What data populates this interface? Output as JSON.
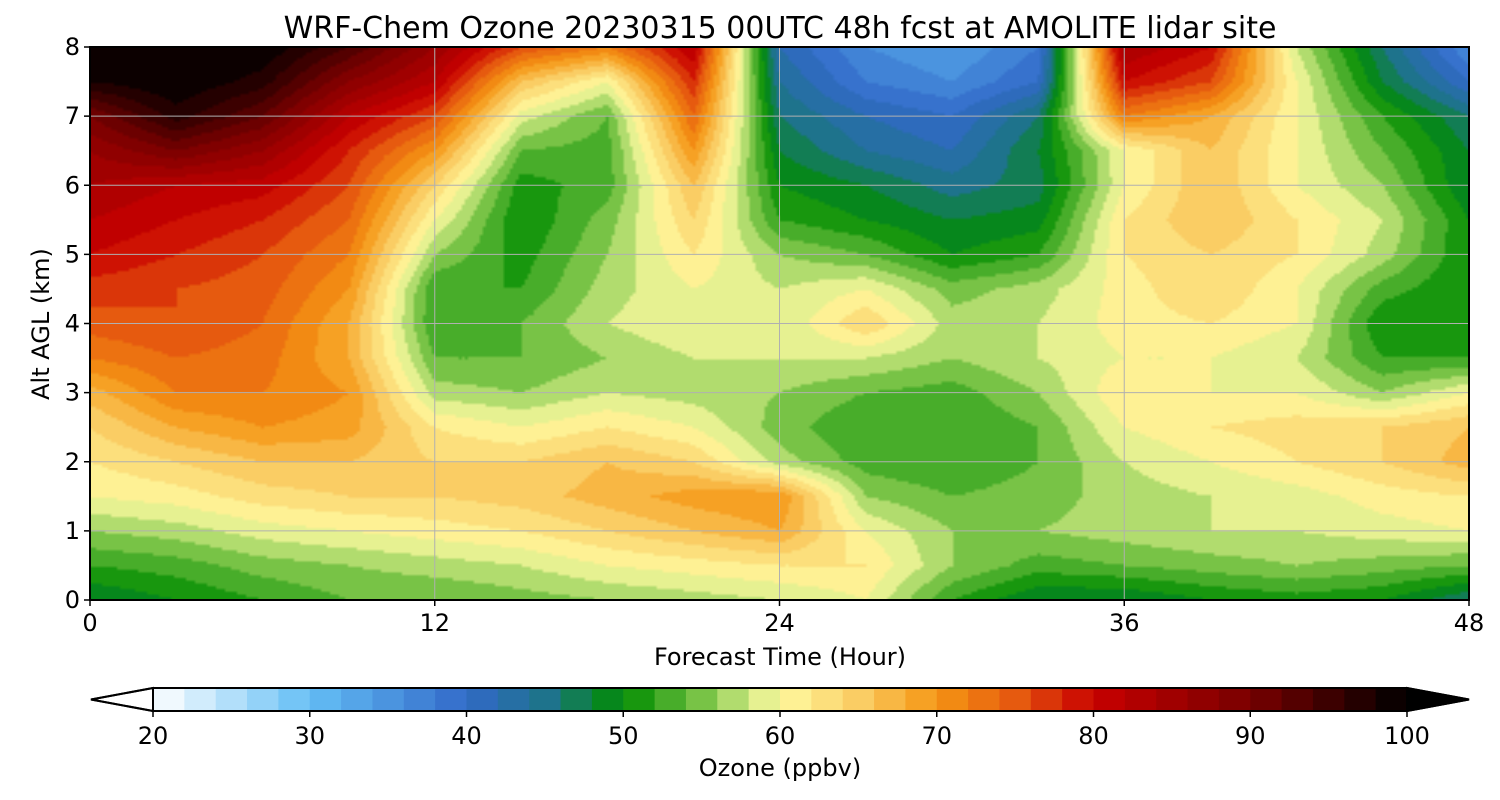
{
  "chart_data": {
    "type": "heatmap",
    "title": "WRF-Chem Ozone  20230315 00UTC 48h fcst at AMOLITE lidar site",
    "xlabel": "Forecast Time (Hour)",
    "ylabel": "Alt AGL (km)",
    "xlim": [
      0,
      48
    ],
    "ylim": [
      0,
      8
    ],
    "xticks": [
      0,
      12,
      24,
      36,
      48
    ],
    "yticks": [
      0,
      1,
      2,
      3,
      4,
      5,
      6,
      7,
      8
    ],
    "grid": true,
    "colorbar": {
      "label": "Ozone  (ppbv)",
      "min": 20,
      "max": 100,
      "step": 2,
      "extend": "both",
      "ticks": [
        20,
        30,
        40,
        50,
        60,
        70,
        80,
        90,
        100
      ]
    },
    "hours": [
      0,
      3,
      6,
      9,
      12,
      15,
      18,
      21,
      24,
      27,
      30,
      33,
      36,
      39,
      42,
      45,
      48
    ],
    "altitudes_km": [
      0,
      0.5,
      1,
      1.5,
      2,
      2.5,
      3,
      3.5,
      4,
      4.5,
      5,
      5.5,
      6,
      6.5,
      7,
      7.5,
      8
    ],
    "ozone_ppbv": [
      [
        48,
        50,
        52,
        54,
        54,
        55,
        56,
        57,
        58,
        60,
        52,
        48,
        48,
        50,
        51,
        50,
        46
      ],
      [
        52,
        53,
        55,
        56,
        57,
        58,
        60,
        61,
        62,
        62,
        56,
        53,
        54,
        55,
        56,
        55,
        54
      ],
      [
        56,
        57,
        59,
        60,
        61,
        62,
        64,
        66,
        68,
        60,
        56,
        56,
        57,
        58,
        58,
        59,
        60
      ],
      [
        60,
        61,
        63,
        64,
        64,
        65,
        67,
        69,
        70,
        56,
        54,
        55,
        57,
        58,
        59,
        61,
        62
      ],
      [
        62,
        64,
        66,
        66,
        64,
        64,
        66,
        64,
        57,
        53,
        52,
        54,
        58,
        60,
        62,
        64,
        67
      ],
      [
        64,
        68,
        70,
        69,
        62,
        60,
        62,
        60,
        55,
        52,
        52,
        54,
        60,
        62,
        63,
        64,
        66
      ],
      [
        67,
        72,
        72,
        70,
        57,
        56,
        58,
        57,
        56,
        54,
        53,
        56,
        62,
        60,
        60,
        56,
        60
      ],
      [
        72,
        74,
        73,
        68,
        54,
        54,
        56,
        58,
        58,
        58,
        56,
        58,
        60,
        60,
        58,
        52,
        52
      ],
      [
        75,
        76,
        74,
        68,
        52,
        54,
        58,
        60,
        58,
        64,
        57,
        58,
        61,
        62,
        60,
        50,
        50
      ],
      [
        77,
        76,
        75,
        70,
        52,
        52,
        57,
        60,
        58,
        60,
        55,
        57,
        61,
        64,
        60,
        53,
        50
      ],
      [
        80,
        78,
        76,
        72,
        56,
        51,
        56,
        62,
        56,
        54,
        50,
        52,
        62,
        64,
        62,
        57,
        50
      ],
      [
        82,
        80,
        78,
        74,
        60,
        50,
        55,
        64,
        52,
        50,
        48,
        49,
        62,
        66,
        62,
        58,
        50
      ],
      [
        84,
        82,
        81,
        76,
        64,
        51,
        53,
        66,
        50,
        48,
        45,
        47,
        60,
        66,
        60,
        56,
        48
      ],
      [
        86,
        90,
        86,
        78,
        70,
        54,
        53,
        70,
        48,
        44,
        42,
        48,
        60,
        66,
        60,
        54,
        48
      ],
      [
        90,
        97,
        92,
        82,
        76,
        59,
        54,
        74,
        46,
        42,
        40,
        46,
        72,
        68,
        60,
        52,
        46
      ],
      [
        98,
        100,
        97,
        88,
        82,
        66,
        60,
        78,
        44,
        38,
        36,
        40,
        80,
        76,
        60,
        48,
        40
      ],
      [
        100,
        100,
        100,
        94,
        86,
        76,
        72,
        82,
        42,
        36,
        34,
        38,
        84,
        80,
        58,
        46,
        36
      ]
    ]
  }
}
